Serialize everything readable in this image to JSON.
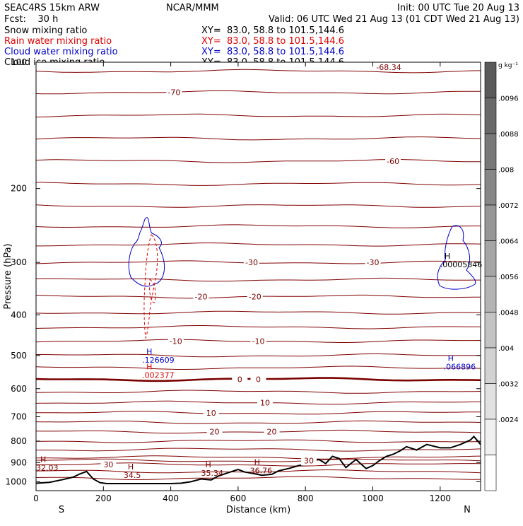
{
  "header": {
    "left1": "SEAC4RS 15km ARW",
    "left2": "Fcst:    30 h",
    "center1": "NCAR/MMM",
    "init": "Init: 00 UTC Tue 20 Aug 13",
    "valid": "Valid: 06 UTC Wed 21 Aug 13 (01 CDT Wed 21 Aug 13)",
    "fields": [
      {
        "name": "Snow mixing ratio",
        "xy": "XY=  83.0, 58.8 to 101.5,144.6",
        "color": "#000000"
      },
      {
        "name": "Rain water mixing ratio",
        "xy": "XY=  83.0, 58.8 to 101.5,144.6",
        "color": "#e00000"
      },
      {
        "name": "Cloud water mixing ratio",
        "xy": "XY=  83.0, 58.8 to 101.5,144.6",
        "color": "#0000c8"
      },
      {
        "name": "Cloud ice mixing ratio",
        "xy": "XY=  83.0, 58.8 to 101.5,144.6",
        "color": "#000000"
      }
    ]
  },
  "chart_data": {
    "type": "contour-cross-section",
    "xlabel": "Distance (km)",
    "ylabel": "Pressure (hPa)",
    "xlim": [
      0,
      1320
    ],
    "ylim": [
      1050,
      100
    ],
    "y_log": true,
    "x_ticks": [
      0,
      200,
      400,
      600,
      800,
      1000,
      1200
    ],
    "y_ticks": [
      100,
      200,
      300,
      400,
      500,
      600,
      700,
      800,
      900,
      1000
    ],
    "x_end_labels": {
      "left": "S",
      "right": "N"
    },
    "isotherm_color": "#800000",
    "zero_isotherm_color": "#7a0000",
    "terrain_color": "#000000",
    "isotherms": [
      {
        "base_p": 105
      },
      {
        "base_p": 118,
        "label": "-70",
        "label_x": 410
      },
      {
        "base_p": 134
      },
      {
        "base_p": 152
      },
      {
        "base_p": 172,
        "label": "-60",
        "label_x": 1060
      },
      {
        "base_p": 195
      },
      {
        "base_p": 220
      },
      {
        "base_p": 246
      },
      {
        "base_p": 272
      },
      {
        "base_p": 300,
        "label": "-30",
        "label_x": 640
      },
      {
        "base_p": 300,
        "label": "-30",
        "label_x": 1000
      },
      {
        "base_p": 330
      },
      {
        "base_p": 362,
        "label": "-20",
        "label_x": 490
      },
      {
        "base_p": 362,
        "label": "-20",
        "label_x": 650
      },
      {
        "base_p": 395
      },
      {
        "base_p": 428
      },
      {
        "base_p": 462,
        "label": "-10",
        "label_x": 415
      },
      {
        "base_p": 462,
        "label": "-10",
        "label_x": 660
      },
      {
        "base_p": 500
      },
      {
        "base_p": 535
      },
      {
        "base_p": 570,
        "zero": true,
        "label": "0",
        "label_x": 605
      },
      {
        "base_p": 570,
        "zero": true,
        "label": "0",
        "label_x": 660
      },
      {
        "base_p": 610
      },
      {
        "base_p": 648,
        "label": "10",
        "label_x": 680
      },
      {
        "base_p": 685,
        "label": "10",
        "label_x": 520
      },
      {
        "base_p": 722
      },
      {
        "base_p": 760,
        "label": "20",
        "label_x": 530
      },
      {
        "base_p": 760,
        "label": "20",
        "label_x": 700
      },
      {
        "base_p": 800
      },
      {
        "base_p": 838
      },
      {
        "base_p": 875
      },
      {
        "base_p": 910,
        "label": "30",
        "label_x": 215
      },
      {
        "base_p": 890,
        "label": "30",
        "label_x": 810
      },
      {
        "base_p": 945
      },
      {
        "base_p": 980
      }
    ],
    "terrain": {
      "x": [
        0,
        40,
        80,
        110,
        130,
        150,
        170,
        190,
        210,
        250,
        300,
        350,
        400,
        430,
        460,
        490,
        520,
        540,
        570,
        600,
        620,
        650,
        670,
        700,
        720,
        750,
        780,
        800,
        820,
        840,
        860,
        880,
        900,
        920,
        950,
        980,
        1000,
        1020,
        1040,
        1060,
        1080,
        1100,
        1130,
        1160,
        1200,
        1230,
        1260,
        1290,
        1300,
        1320
      ],
      "p": [
        1008,
        1003,
        988,
        975,
        958,
        945,
        985,
        1005,
        1010,
        1010,
        1010,
        1010,
        1010,
        1008,
        1000,
        985,
        990,
        970,
        952,
        935,
        948,
        957,
        965,
        960,
        942,
        930,
        915,
        910,
        885,
        885,
        905,
        870,
        880,
        925,
        885,
        930,
        915,
        890,
        870,
        860,
        845,
        825,
        840,
        815,
        830,
        830,
        815,
        795,
        780,
        815
      ]
    },
    "highs": [
      {
        "x": 0,
        "p": 940,
        "value": "32.03",
        "color": "#800000"
      },
      {
        "x": 260,
        "p": 980,
        "value": "34.5",
        "color": "#800000"
      },
      {
        "x": 490,
        "p": 968,
        "value": "35.34",
        "color": "#800000"
      },
      {
        "x": 635,
        "p": 955,
        "value": "36.76",
        "color": "#800000"
      },
      {
        "x": 1200,
        "p": 308,
        "value": ".00005846",
        "color": "#000000"
      },
      {
        "x": 315,
        "p": 520,
        "value": ".126609",
        "color": "#0000c8"
      },
      {
        "x": 315,
        "p": 565,
        "value": ".002377",
        "color": "#e00000"
      },
      {
        "x": 1210,
        "p": 540,
        "value": ".066896",
        "color": "#0000c8"
      }
    ],
    "top_label": {
      "value": "-68.34",
      "x": 1010
    },
    "colorbar": {
      "unit": "g kg⁻¹",
      "labels": [
        ".0096",
        ".0088",
        ".008",
        ".0072",
        ".0064",
        ".0056",
        ".0048",
        ".004",
        ".0032",
        ".0024"
      ]
    }
  }
}
